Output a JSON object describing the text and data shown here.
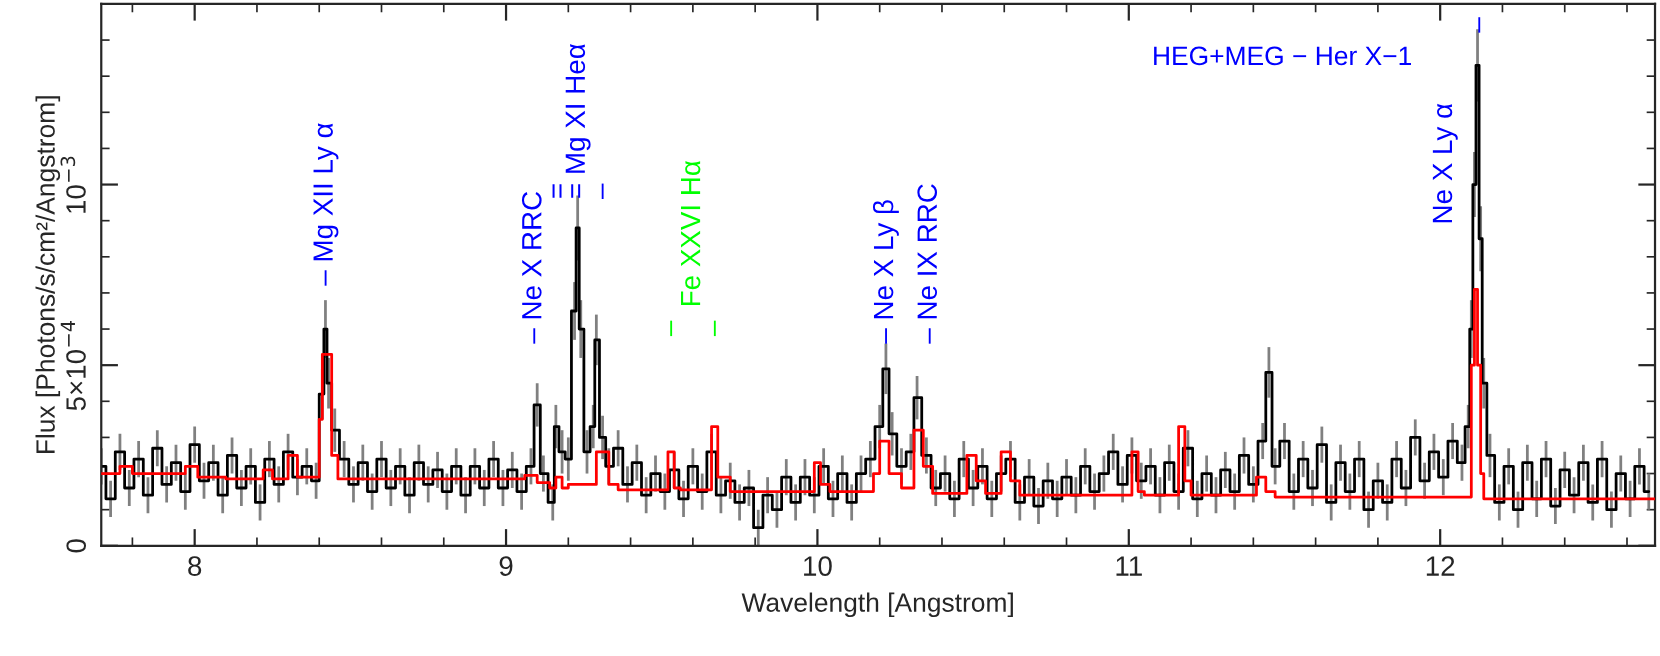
{
  "chart_data": {
    "type": "step",
    "title": "HEG+MEG − Her X−1",
    "xlabel": "Wavelength [Angstrom]",
    "ylabel": "Flux [Photons/s/cm²/Angstrom]",
    "xlim": [
      7.7,
      12.69
    ],
    "xticks": [
      8,
      9,
      10,
      11,
      12
    ],
    "ylim": [
      0,
      0.0015
    ],
    "yticks": [
      0,
      {
        "value": 0.0005,
        "label": "5×10$^{−4}$"
      },
      {
        "value": 0.001,
        "label": "10$^{−3}$"
      }
    ],
    "grid": false,
    "legend": false,
    "series": [
      {
        "color": "#000000",
        "x": [
          7.7,
          7.73,
          7.76,
          7.79,
          7.82,
          7.85,
          7.88,
          7.91,
          7.94,
          7.97,
          8.0,
          8.03,
          8.06,
          8.09,
          8.12,
          8.15,
          8.18,
          8.21,
          8.24,
          8.27,
          8.3,
          8.33,
          8.36,
          8.39,
          8.41,
          8.42,
          8.43,
          8.45,
          8.48,
          8.51,
          8.54,
          8.57,
          8.6,
          8.63,
          8.66,
          8.69,
          8.72,
          8.75,
          8.78,
          8.81,
          8.84,
          8.87,
          8.9,
          8.93,
          8.96,
          8.99,
          9.02,
          9.05,
          9.08,
          9.1,
          9.12,
          9.15,
          9.16,
          9.18,
          9.2,
          9.22,
          9.23,
          9.24,
          9.26,
          9.28,
          9.29,
          9.31,
          9.33,
          9.36,
          9.39,
          9.42,
          9.45,
          9.48,
          9.51,
          9.54,
          9.57,
          9.6,
          9.63,
          9.66,
          9.69,
          9.72,
          9.75,
          9.78,
          9.81,
          9.84,
          9.87,
          9.9,
          9.93,
          9.96,
          9.99,
          10.02,
          10.05,
          10.08,
          10.11,
          10.14,
          10.17,
          10.2,
          10.22,
          10.24,
          10.27,
          10.3,
          10.32,
          10.35,
          10.38,
          10.41,
          10.44,
          10.47,
          10.5,
          10.53,
          10.56,
          10.59,
          10.62,
          10.65,
          10.68,
          10.71,
          10.74,
          10.77,
          10.8,
          10.83,
          10.86,
          10.89,
          10.92,
          10.95,
          10.98,
          11.01,
          11.04,
          11.07,
          11.1,
          11.13,
          11.16,
          11.19,
          11.22,
          11.25,
          11.28,
          11.31,
          11.34,
          11.37,
          11.4,
          11.43,
          11.45,
          11.47,
          11.5,
          11.53,
          11.56,
          11.59,
          11.62,
          11.65,
          11.68,
          11.71,
          11.74,
          11.77,
          11.8,
          11.83,
          11.86,
          11.89,
          11.92,
          11.95,
          11.98,
          12.01,
          12.04,
          12.07,
          12.09,
          12.1,
          12.11,
          12.12,
          12.13,
          12.14,
          12.16,
          12.19,
          12.22,
          12.25,
          12.28,
          12.31,
          12.34,
          12.37,
          12.4,
          12.43,
          12.46,
          12.49,
          12.52,
          12.55,
          12.58,
          12.61,
          12.64,
          12.67
        ],
        "values": [
          0.00022,
          0.00013,
          0.00026,
          0.00016,
          0.00024,
          0.00014,
          0.00027,
          0.00017,
          0.00023,
          0.00015,
          0.00028,
          0.00018,
          0.00023,
          0.00014,
          0.00025,
          0.00016,
          0.00022,
          0.00012,
          0.00024,
          0.00017,
          0.00026,
          0.00019,
          0.00022,
          0.00018,
          0.00042,
          0.0006,
          0.00045,
          0.00032,
          0.00024,
          0.00017,
          0.00023,
          0.00015,
          0.00024,
          0.00016,
          0.00022,
          0.00014,
          0.00023,
          0.00017,
          0.00021,
          0.00015,
          0.00022,
          0.00014,
          0.00022,
          0.00016,
          0.00024,
          0.00016,
          0.00021,
          0.00015,
          0.00022,
          0.00039,
          0.0002,
          0.00012,
          0.00033,
          0.00026,
          0.00024,
          0.00065,
          0.00088,
          0.0006,
          0.00026,
          0.00033,
          0.00057,
          0.0003,
          0.00022,
          0.00027,
          0.00017,
          0.00023,
          0.00014,
          0.0002,
          0.00015,
          0.00021,
          0.00013,
          0.00022,
          0.00015,
          0.00026,
          0.00014,
          0.00018,
          0.00012,
          0.00016,
          5e-05,
          0.00014,
          0.0001,
          0.00019,
          0.00012,
          0.00019,
          0.00014,
          0.00022,
          0.00013,
          0.0002,
          0.00012,
          0.0002,
          0.00024,
          0.00033,
          0.00049,
          0.00031,
          0.00022,
          0.00026,
          0.00041,
          0.00025,
          0.00016,
          0.0002,
          0.00013,
          0.00024,
          0.00016,
          0.00022,
          0.00013,
          0.0002,
          0.00024,
          0.00012,
          0.00019,
          0.00011,
          0.00018,
          0.00013,
          0.00019,
          0.00014,
          0.00022,
          0.00015,
          0.0002,
          0.00026,
          0.00017,
          0.00025,
          0.00018,
          0.00022,
          0.00014,
          0.00023,
          0.00015,
          0.00027,
          0.00013,
          0.0002,
          0.00014,
          0.00021,
          0.00015,
          0.00025,
          0.00017,
          0.00029,
          0.00048,
          0.00022,
          0.00029,
          0.00015,
          0.00024,
          0.00016,
          0.00028,
          0.00012,
          0.00023,
          0.00015,
          0.00024,
          0.0001,
          0.00018,
          0.00012,
          0.00024,
          0.00016,
          0.0003,
          0.00018,
          0.00026,
          0.00019,
          0.00029,
          0.00023,
          0.00033,
          0.0006,
          0.001,
          0.00133,
          0.00085,
          0.00045,
          0.00025,
          0.00012,
          0.00022,
          0.0001,
          0.00023,
          0.00013,
          0.00024,
          0.00011,
          0.00021,
          0.00014,
          0.00023,
          0.00012,
          0.00024,
          0.0001,
          0.0002,
          0.00013,
          0.00022,
          0.00015
        ],
        "errors": [
          5e-05,
          5e-05,
          5e-05,
          5e-05,
          5e-05,
          5e-05,
          5e-05,
          5e-05,
          5e-05,
          5e-05,
          5e-05,
          5e-05,
          5e-05,
          5e-05,
          5e-05,
          5e-05,
          5e-05,
          5e-05,
          5e-05,
          5e-05,
          5e-05,
          5e-05,
          5e-05,
          5e-05,
          7e-05,
          8e-05,
          7e-05,
          6e-05,
          5e-05,
          5e-05,
          5e-05,
          5e-05,
          5e-05,
          5e-05,
          5e-05,
          5e-05,
          5e-05,
          5e-05,
          5e-05,
          5e-05,
          5e-05,
          5e-05,
          5e-05,
          5e-05,
          5e-05,
          5e-05,
          5e-05,
          5e-05,
          5e-05,
          6e-05,
          5e-05,
          5e-05,
          6e-05,
          6e-05,
          6e-05,
          8e-05,
          9e-05,
          8e-05,
          6e-05,
          6e-05,
          7e-05,
          6e-05,
          5e-05,
          5e-05,
          5e-05,
          5e-05,
          5e-05,
          5e-05,
          5e-05,
          5e-05,
          5e-05,
          5e-05,
          5e-05,
          5e-05,
          5e-05,
          5e-05,
          5e-05,
          5e-05,
          5e-05,
          5e-05,
          5e-05,
          5e-05,
          5e-05,
          5e-05,
          5e-05,
          5e-05,
          5e-05,
          5e-05,
          5e-05,
          5e-05,
          5e-05,
          6e-05,
          7e-05,
          6e-05,
          5e-05,
          5e-05,
          6e-05,
          5e-05,
          5e-05,
          5e-05,
          5e-05,
          5e-05,
          5e-05,
          5e-05,
          5e-05,
          5e-05,
          5e-05,
          5e-05,
          5e-05,
          5e-05,
          5e-05,
          5e-05,
          5e-05,
          5e-05,
          5e-05,
          5e-05,
          5e-05,
          5e-05,
          5e-05,
          5e-05,
          5e-05,
          5e-05,
          5e-05,
          5e-05,
          5e-05,
          5e-05,
          5e-05,
          5e-05,
          5e-05,
          5e-05,
          5e-05,
          5e-05,
          5e-05,
          5e-05,
          7e-05,
          5e-05,
          5e-05,
          5e-05,
          5e-05,
          5e-05,
          5e-05,
          5e-05,
          5e-05,
          5e-05,
          5e-05,
          5e-05,
          5e-05,
          5e-05,
          5e-05,
          5e-05,
          5e-05,
          5e-05,
          5e-05,
          5e-05,
          5e-05,
          5e-05,
          6e-05,
          8e-05,
          9e-05,
          0.0001,
          9e-05,
          7e-05,
          6e-05,
          5e-05,
          5e-05,
          5e-05,
          5e-05,
          5e-05,
          5e-05,
          5e-05,
          5e-05,
          5e-05,
          5e-05,
          5e-05,
          5e-05,
          5e-05,
          5e-05,
          5e-05,
          5e-05,
          5e-05
        ]
      },
      {
        "color": "#ff0000",
        "x": [
          7.7,
          7.76,
          7.8,
          7.97,
          8.01,
          8.1,
          8.22,
          8.25,
          8.3,
          8.33,
          8.4,
          8.41,
          8.44,
          8.46,
          9.06,
          9.1,
          9.14,
          9.16,
          9.18,
          9.2,
          9.29,
          9.33,
          9.36,
          9.52,
          9.54,
          9.56,
          9.66,
          9.68,
          9.72,
          9.99,
          10.01,
          10.04,
          10.18,
          10.2,
          10.23,
          10.27,
          10.31,
          10.34,
          10.37,
          10.48,
          10.51,
          10.54,
          10.59,
          10.62,
          10.65,
          11.01,
          11.03,
          11.05,
          11.16,
          11.18,
          11.2,
          11.41,
          11.44,
          11.47,
          12.1,
          12.11,
          12.12,
          12.13,
          12.14,
          12.69
        ],
        "values": [
          0.0002,
          0.00022,
          0.0002,
          0.00022,
          0.00019,
          0.000185,
          0.00021,
          0.000185,
          0.00025,
          0.00019,
          0.00035,
          0.00053,
          0.00025,
          0.000185,
          0.000195,
          0.000175,
          0.00016,
          0.00019,
          0.00016,
          0.00017,
          0.00026,
          0.00017,
          0.000155,
          0.00026,
          0.00016,
          0.000155,
          0.00033,
          0.00019,
          0.00015,
          0.00023,
          0.00017,
          0.00015,
          0.0002,
          0.00029,
          0.0002,
          0.00016,
          0.00032,
          0.00022,
          0.000145,
          0.00025,
          0.00018,
          0.000145,
          0.00026,
          0.00018,
          0.00014,
          0.00026,
          0.00015,
          0.00014,
          0.00033,
          0.00018,
          0.00014,
          0.00019,
          0.00015,
          0.000135,
          0.0005,
          0.00071,
          0.0005,
          0.0002,
          0.00013,
          0.00013
        ]
      }
    ],
    "annotations": [
      "– Mg XII Ly α",
      "– Ne X RRC",
      "=",
      "= Mg XI Heα",
      "–",
      "–",
      "Fe XXVI Hα",
      "–",
      "– Ne X Ly β",
      "– Ne IX RRC",
      "Ne X Ly α",
      "–"
    ]
  }
}
